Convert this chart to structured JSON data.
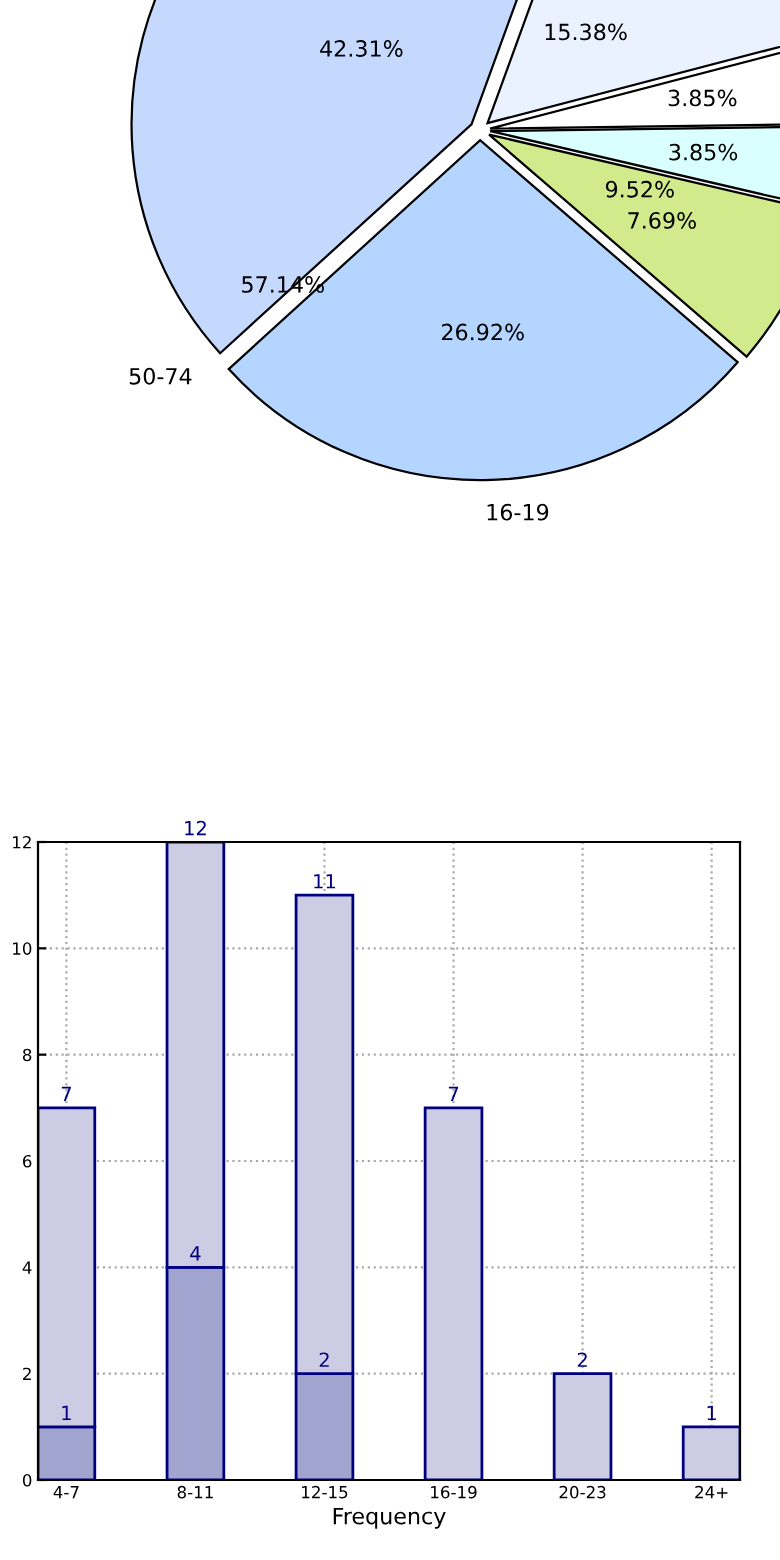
{
  "chart_data": [
    {
      "type": "pie",
      "categories": [
        null,
        "16-19",
        null,
        null,
        null,
        null
      ],
      "values": [
        42.31,
        26.92,
        7.69,
        3.85,
        3.85,
        15.38
      ],
      "colors": [
        "#c5d9ff",
        "#b3d5ff",
        "#d0ea8c",
        "#d9ffff",
        "#ffffff",
        "#eaf1ff"
      ],
      "value_labels": [
        "42.31%",
        "26.92%",
        "7.69%",
        "3.85%",
        "3.85%",
        "15.38%"
      ],
      "annotations": [
        "57.14%",
        "9.52%",
        "50-74"
      ]
    },
    {
      "type": "bar",
      "xlabel": "Frequency",
      "categories": [
        "4-7",
        "8-11",
        "12-15",
        "16-19",
        "20-23",
        "24+"
      ],
      "series": [
        {
          "color": "#a2a4d0",
          "values": [
            1,
            4,
            2,
            0,
            0,
            0
          ],
          "value_labels": [
            "1",
            "4",
            "2",
            null,
            null,
            null
          ]
        },
        {
          "color": "#ccccE4",
          "values": [
            6,
            8,
            9,
            7,
            2,
            1
          ]
        }
      ],
      "stacked": true,
      "totals": [
        "7",
        "12",
        "11",
        "7",
        "2",
        "1"
      ],
      "ylim": [
        0,
        12
      ],
      "yticks": [
        0,
        2,
        4,
        6,
        8,
        10,
        12
      ],
      "grid": true
    }
  ]
}
